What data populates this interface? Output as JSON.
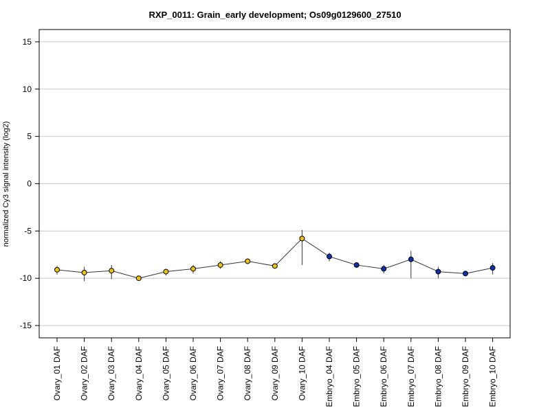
{
  "chart_data": {
    "type": "line",
    "title": "RXP_0011: Grain_early development; Os09g0129600_27510",
    "xlabel": "",
    "ylabel": "normalized Cy3 signal intensity (log2)",
    "ylim": [
      -16.3,
      16.3
    ],
    "yticks": [
      15,
      10,
      5,
      0,
      -5,
      -10,
      -15
    ],
    "grid": "horizontal",
    "categories": [
      "Ovary_01 DAF",
      "Ovary_02 DAF",
      "Ovary_03 DAF",
      "Ovary_04 DAF",
      "Ovary_05 DAF",
      "Ovary_06 DAF",
      "Ovary_07 DAF",
      "Ovary_08 DAF",
      "Ovary_09 DAF",
      "Ovary_10 DAF",
      "Embryo_04 DAF",
      "Embryo_05 DAF",
      "Embryo_06 DAF",
      "Embryo_07 DAF",
      "Embryo_08 DAF",
      "Embryo_09 DAF",
      "Embryo_10 DAF"
    ],
    "series": [
      {
        "values": [
          -9.1,
          -9.4,
          -9.2,
          -10.0,
          -9.3,
          -9.0,
          -8.6,
          -8.2,
          -8.7,
          -5.8,
          -7.7,
          -8.6,
          -9.0,
          -8.0,
          -9.3,
          -9.5,
          -8.9
        ],
        "err_low": [
          -9.6,
          -10.3,
          -10.1,
          -10.1,
          -9.7,
          -9.5,
          -9.0,
          -8.3,
          -8.8,
          -8.6,
          -8.2,
          -8.7,
          -9.5,
          -10.0,
          -10.0,
          -9.6,
          -9.6
        ],
        "err_high": [
          -8.7,
          -8.8,
          -8.6,
          -9.9,
          -9.0,
          -8.6,
          -8.2,
          -8.0,
          -8.6,
          -4.9,
          -7.3,
          -8.4,
          -8.6,
          -7.1,
          -8.8,
          -9.4,
          -8.4
        ],
        "colors": [
          "#e8c21a",
          "#e8c21a",
          "#e8c21a",
          "#e8c21a",
          "#e8c21a",
          "#e8c21a",
          "#e8c21a",
          "#e8c21a",
          "#e8c21a",
          "#e8c21a",
          "#1030a8",
          "#1030a8",
          "#1030a8",
          "#1030a8",
          "#1030a8",
          "#1030a8",
          "#1030a8"
        ]
      }
    ]
  }
}
